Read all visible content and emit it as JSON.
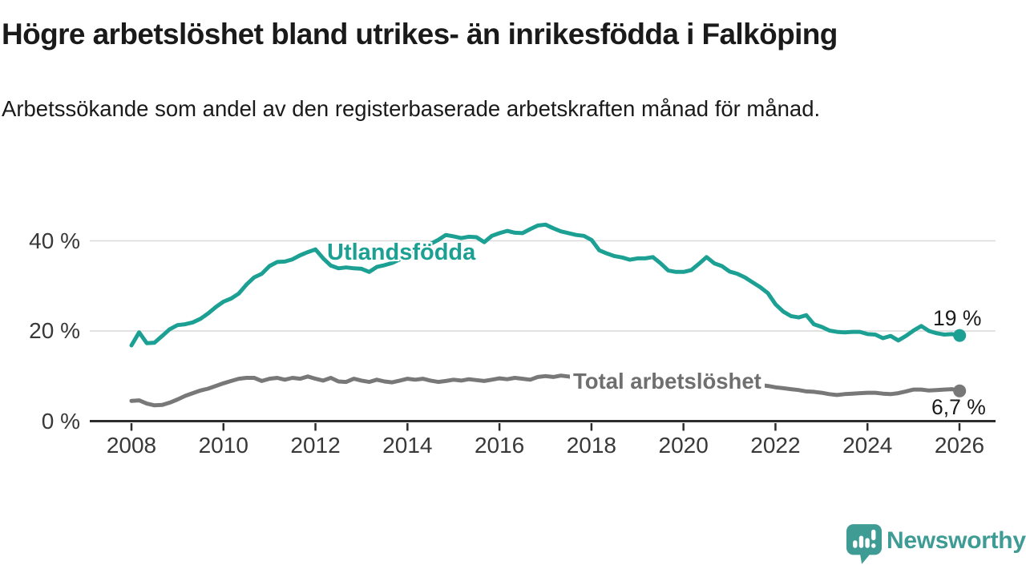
{
  "header": {
    "title": "Högre arbetslöshet bland utrikes- än inrikesfödda i Falköping",
    "subtitle": "Arbetssökande som andel av den registerbaserade arbetskraften månad för månad."
  },
  "theme": {
    "background": "#ffffff",
    "grid_color": "#d9d9d9",
    "axis_color": "#2d2d2d",
    "text_color": "#1a1a1a",
    "tick_label_color": "#383838",
    "accent_teal": "#1ba093",
    "accent_gray": "#787878",
    "brand_color": "#3f9c95"
  },
  "chart_data": {
    "type": "line",
    "title": "Högre arbetslöshet bland utrikes- än inrikesfödda i Falköping",
    "subtitle": "Arbetssökande som andel av den registerbaserade arbetskraften månad för månad.",
    "x_unit": "year",
    "x_start": 2008,
    "x_step": 0.1667,
    "xlim": [
      2007.1,
      2026.75
    ],
    "ylim": [
      0,
      45
    ],
    "grid": "horizontal",
    "x_ticks": [
      2008,
      2010,
      2012,
      2014,
      2016,
      2018,
      2020,
      2022,
      2024,
      2026
    ],
    "y_ticks": [
      {
        "value": 0,
        "label": "0 %"
      },
      {
        "value": 20,
        "label": "20 %"
      },
      {
        "value": 40,
        "label": "40 %"
      }
    ],
    "series": [
      {
        "id": "utlandsfodda",
        "name": "Utlandsfödda",
        "color": "#1ba093",
        "end_label": "19 %",
        "end_value": 19,
        "values": [
          16.8,
          19.7,
          17.3,
          17.4,
          18.9,
          20.4,
          21.3,
          21.5,
          21.9,
          22.7,
          23.9,
          25.3,
          26.5,
          27.2,
          28.3,
          30.3,
          31.9,
          32.7,
          34.4,
          35.3,
          35.4,
          35.9,
          36.8,
          37.5,
          38.1,
          36.1,
          34.5,
          33.9,
          34.1,
          33.9,
          33.8,
          33.1,
          34.2,
          34.6,
          35.1,
          35.9,
          36.6,
          37.5,
          38.4,
          39.3,
          40.2,
          41.3,
          41.0,
          40.6,
          40.9,
          40.8,
          39.7,
          41.1,
          41.7,
          42.2,
          41.8,
          41.7,
          42.6,
          43.4,
          43.6,
          42.8,
          42.1,
          41.7,
          41.3,
          41.1,
          40.2,
          37.9,
          37.2,
          36.6,
          36.3,
          35.8,
          36.1,
          36.1,
          36.4,
          35.0,
          33.4,
          33.1,
          33.1,
          33.5,
          34.9,
          36.4,
          35.0,
          34.4,
          33.2,
          32.7,
          31.9,
          30.8,
          29.7,
          28.4,
          25.9,
          24.3,
          23.3,
          23.0,
          23.5,
          21.5,
          20.9,
          20.1,
          19.8,
          19.7,
          19.8,
          19.8,
          19.3,
          19.2,
          18.4,
          18.9,
          17.9,
          18.9,
          20.1,
          21.1,
          20.0,
          19.5,
          19.2,
          19.3,
          19.0
        ]
      },
      {
        "id": "total-arbetsloshet",
        "name": "Total arbetslöshet",
        "color": "#787878",
        "end_label": "6,7 %",
        "end_value": 6.7,
        "values": [
          4.5,
          4.6,
          3.9,
          3.5,
          3.6,
          4.1,
          4.8,
          5.6,
          6.2,
          6.8,
          7.2,
          7.8,
          8.4,
          8.9,
          9.4,
          9.6,
          9.6,
          8.9,
          9.4,
          9.6,
          9.2,
          9.6,
          9.4,
          9.9,
          9.4,
          9.0,
          9.6,
          8.8,
          8.7,
          9.4,
          9.0,
          8.7,
          9.2,
          8.8,
          8.6,
          9.0,
          9.4,
          9.2,
          9.4,
          9.0,
          8.7,
          8.9,
          9.2,
          9.0,
          9.3,
          9.1,
          8.9,
          9.2,
          9.5,
          9.3,
          9.6,
          9.4,
          9.2,
          9.8,
          10.0,
          9.8,
          10.1,
          9.9,
          9.6,
          9.4,
          9.5,
          9.2,
          9.0,
          8.8,
          8.7,
          8.8,
          8.8,
          8.6,
          8.5,
          8.4,
          8.3,
          8.4,
          8.5,
          9.0,
          9.6,
          10.0,
          9.8,
          9.6,
          9.3,
          9.0,
          8.7,
          8.4,
          8.0,
          7.8,
          7.5,
          7.3,
          7.1,
          6.9,
          6.6,
          6.5,
          6.3,
          6.0,
          5.8,
          6.0,
          6.1,
          6.2,
          6.3,
          6.3,
          6.1,
          6.0,
          6.2,
          6.6,
          7.0,
          7.0,
          6.8,
          6.9,
          7.0,
          7.1,
          6.7
        ]
      }
    ],
    "legend_position": "inline-labels"
  },
  "footer": {
    "brand": "Newsworthy"
  }
}
